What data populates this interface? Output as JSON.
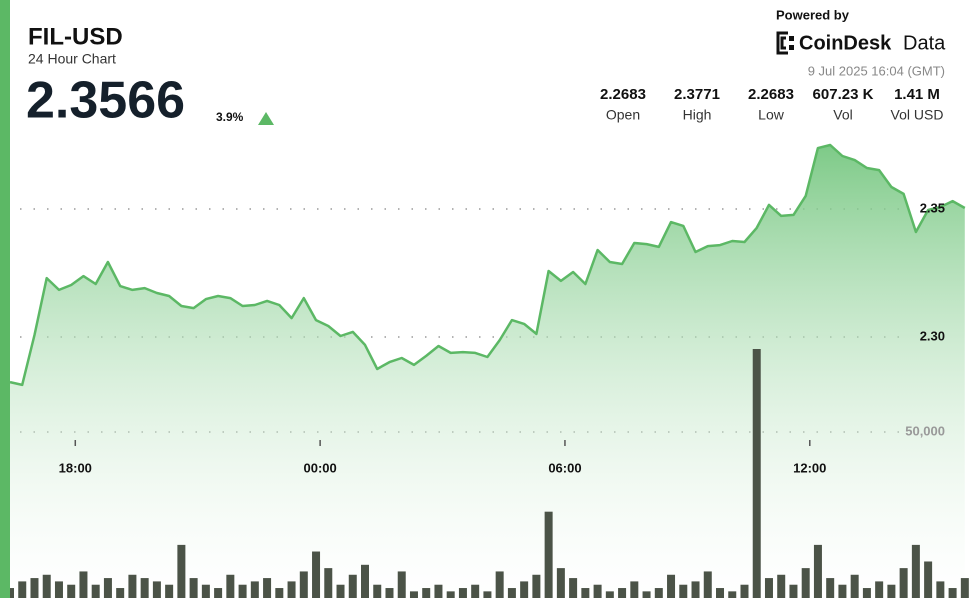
{
  "header": {
    "price": "2.3566",
    "change": "3.9%",
    "powered_by": "Powered by",
    "brand": "CoinDesk",
    "brand_suffix": "Data",
    "timestamp": "9 Jul 2025 16:04 (GMT)",
    "stats": [
      {
        "value": "2.2683",
        "label": "Open"
      },
      {
        "value": "2.3771",
        "label": "High"
      },
      {
        "value": "2.2683",
        "label": "Low"
      },
      {
        "value": "607.23 K",
        "label": "Vol"
      },
      {
        "value": "1.41 M",
        "label": "Vol USD"
      }
    ]
  },
  "chart_data": {
    "type": "area",
    "title": "FIL-USD",
    "subtitle": "24 Hour Chart",
    "x": [
      16.4,
      16.7,
      17.0,
      17.3,
      17.6,
      17.9,
      18.2,
      18.5,
      18.8,
      19.1,
      19.4,
      19.7,
      20.0,
      20.3,
      20.6,
      20.9,
      21.2,
      21.5,
      21.8,
      22.1,
      22.4,
      22.7,
      23.0,
      23.3,
      23.6,
      23.9,
      24.2,
      24.5,
      24.8,
      25.1,
      25.4,
      25.7,
      26.0,
      26.3,
      26.6,
      26.9,
      27.2,
      27.5,
      27.8,
      28.1,
      28.4,
      28.7,
      29.0,
      29.3,
      29.6,
      29.9,
      30.2,
      30.5,
      30.8,
      31.1,
      31.4,
      31.7,
      32.0,
      32.3,
      32.6,
      32.9,
      33.2,
      33.5,
      33.8,
      34.1,
      34.4,
      34.7,
      35.0,
      35.3,
      35.6,
      35.9,
      36.2,
      36.5,
      36.8,
      37.1,
      37.4,
      37.7,
      38.0,
      38.3,
      38.6,
      38.9,
      39.2,
      39.5,
      39.8
    ],
    "series": [
      {
        "type": "area",
        "color": "#5cb865",
        "values": [
          2.2824,
          2.2813,
          2.3008,
          2.323,
          2.3184,
          2.3203,
          2.3238,
          2.3207,
          2.3293,
          2.3199,
          2.3184,
          2.3191,
          2.3172,
          2.316,
          2.3121,
          2.3113,
          2.3148,
          2.316,
          2.3152,
          2.3121,
          2.3125,
          2.3141,
          2.3125,
          2.3074,
          2.3152,
          2.3066,
          2.3043,
          2.3004,
          2.302,
          2.2969,
          2.2875,
          2.2902,
          2.2918,
          2.2891,
          2.2926,
          2.2965,
          2.2938,
          2.2941,
          2.2938,
          2.2922,
          2.2988,
          2.3066,
          2.3051,
          2.3012,
          2.3258,
          2.3219,
          2.3254,
          2.3207,
          2.334,
          2.3293,
          2.3285,
          2.3367,
          2.3363,
          2.3352,
          2.3449,
          2.3434,
          2.3332,
          2.3355,
          2.3359,
          2.3375,
          2.3371,
          2.3426,
          2.3516,
          2.3473,
          2.3477,
          2.3551,
          2.3738,
          2.375,
          2.3707,
          2.3691,
          2.366,
          2.3652,
          2.3586,
          2.3559,
          2.341,
          2.3496,
          2.3508,
          2.3531,
          2.3504
        ]
      },
      {
        "type": "bar",
        "axis": "y2",
        "color": "#4b5347",
        "values": [
          3000,
          5000,
          6000,
          7000,
          5000,
          4000,
          8000,
          4000,
          6000,
          3000,
          7000,
          6000,
          5000,
          4000,
          16000,
          6000,
          4000,
          3000,
          7000,
          4000,
          5000,
          6000,
          3000,
          5000,
          8000,
          14000,
          9000,
          4000,
          7000,
          10000,
          4000,
          3000,
          8000,
          2000,
          3000,
          4000,
          2000,
          3000,
          4000,
          2000,
          8000,
          3000,
          5000,
          7000,
          26000,
          9000,
          6000,
          3000,
          4000,
          2000,
          3000,
          5000,
          2000,
          3000,
          7000,
          4000,
          5000,
          8000,
          3000,
          2000,
          4000,
          75000,
          6000,
          7000,
          4000,
          9000,
          16000,
          6000,
          4000,
          7000,
          3000,
          5000,
          4000,
          9000,
          16000,
          11000,
          5000,
          3000,
          6000
        ]
      }
    ],
    "xlim": [
      16.4,
      40.0
    ],
    "xticks": [
      {
        "value": 18,
        "label": "18:00"
      },
      {
        "value": 24,
        "label": "00:00"
      },
      {
        "value": 30,
        "label": "06:00"
      },
      {
        "value": 36,
        "label": "12:00"
      }
    ],
    "ylim": [
      2.2,
      2.38
    ],
    "yticks": [
      {
        "value": 2.3,
        "label": "2.30"
      },
      2.35
    ],
    "y2lim": [
      0,
      80000
    ],
    "y2ticks": [
      {
        "value": 50000,
        "label": "50,000"
      }
    ],
    "grid": true
  }
}
